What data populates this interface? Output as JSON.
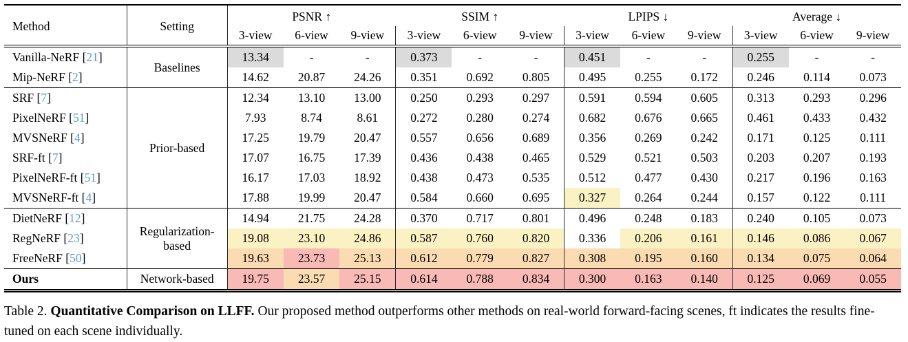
{
  "colors": {
    "best": "#F9B9B4",
    "second": "#FBDCB2",
    "third": "#FBF2C4",
    "baseline": "#DBDBDB",
    "citation": "#5B9BD5"
  },
  "table": {
    "method_header": "Method",
    "setting_header": "Setting",
    "groups": [
      {
        "label": "PSNR ↑"
      },
      {
        "label": "SSIM ↑"
      },
      {
        "label": "LPIPS ↓"
      },
      {
        "label": "Average ↓"
      }
    ],
    "subviews": [
      "3-view",
      "6-view",
      "9-view"
    ],
    "bracket_open": "[",
    "bracket_close": "]",
    "sections": [
      {
        "setting": "Baselines",
        "rows": [
          {
            "method": "Vanilla-NeRF",
            "cite": "21",
            "values": [
              "13.34",
              "-",
              "-",
              "0.373",
              "-",
              "-",
              "0.451",
              "-",
              "-",
              "0.255",
              "-",
              "-"
            ],
            "hl": [
              "g",
              "",
              "",
              "g",
              "",
              "",
              "g",
              "",
              "",
              "g",
              "",
              ""
            ]
          },
          {
            "method": "Mip-NeRF",
            "cite": "2",
            "values": [
              "14.62",
              "20.87",
              "24.26",
              "0.351",
              "0.692",
              "0.805",
              "0.495",
              "0.255",
              "0.172",
              "0.246",
              "0.114",
              "0.073"
            ],
            "hl": [
              "",
              "",
              "",
              "",
              "",
              "",
              "",
              "",
              "",
              "",
              "",
              ""
            ]
          }
        ]
      },
      {
        "setting": "Prior-based",
        "rows": [
          {
            "method": "SRF",
            "cite": "7",
            "values": [
              "12.34",
              "13.10",
              "13.00",
              "0.250",
              "0.293",
              "0.297",
              "0.591",
              "0.594",
              "0.605",
              "0.313",
              "0.293",
              "0.296"
            ],
            "hl": [
              "",
              "",
              "",
              "",
              "",
              "",
              "",
              "",
              "",
              "",
              "",
              ""
            ]
          },
          {
            "method": "PixelNeRF",
            "cite": "51",
            "values": [
              "7.93",
              "8.74",
              "8.61",
              "0.272",
              "0.280",
              "0.274",
              "0.682",
              "0.676",
              "0.665",
              "0.461",
              "0.433",
              "0.432"
            ],
            "hl": [
              "",
              "",
              "",
              "",
              "",
              "",
              "",
              "",
              "",
              "",
              "",
              ""
            ]
          },
          {
            "method": "MVSNeRF",
            "cite": "4",
            "values": [
              "17.25",
              "19.79",
              "20.47",
              "0.557",
              "0.656",
              "0.689",
              "0.356",
              "0.269",
              "0.242",
              "0.171",
              "0.125",
              "0.111"
            ],
            "hl": [
              "",
              "",
              "",
              "",
              "",
              "",
              "",
              "",
              "",
              "",
              "",
              ""
            ]
          },
          {
            "method": "SRF-ft",
            "cite": "7",
            "values": [
              "17.07",
              "16.75",
              "17.39",
              "0.436",
              "0.438",
              "0.465",
              "0.529",
              "0.521",
              "0.503",
              "0.203",
              "0.207",
              "0.193"
            ],
            "hl": [
              "",
              "",
              "",
              "",
              "",
              "",
              "",
              "",
              "",
              "",
              "",
              ""
            ]
          },
          {
            "method": "PixelNeRF-ft",
            "cite": "51",
            "values": [
              "16.17",
              "17.03",
              "18.92",
              "0.438",
              "0.473",
              "0.535",
              "0.512",
              "0.477",
              "0.430",
              "0.217",
              "0.196",
              "0.163"
            ],
            "hl": [
              "",
              "",
              "",
              "",
              "",
              "",
              "",
              "",
              "",
              "",
              "",
              ""
            ]
          },
          {
            "method": "MVSNeRF-ft",
            "cite": "4",
            "values": [
              "17.88",
              "19.99",
              "20.47",
              "0.584",
              "0.660",
              "0.695",
              "0.327",
              "0.264",
              "0.244",
              "0.157",
              "0.122",
              "0.111"
            ],
            "hl": [
              "",
              "",
              "",
              "",
              "",
              "",
              "y",
              "",
              "",
              "",
              "",
              ""
            ]
          }
        ]
      },
      {
        "setting": "Regularization-based",
        "rows": [
          {
            "method": "DietNeRF",
            "cite": "12",
            "values": [
              "14.94",
              "21.75",
              "24.28",
              "0.370",
              "0.717",
              "0.801",
              "0.496",
              "0.248",
              "0.183",
              "0.240",
              "0.105",
              "0.073"
            ],
            "hl": [
              "",
              "",
              "",
              "",
              "",
              "",
              "",
              "",
              "",
              "",
              "",
              ""
            ]
          },
          {
            "method": "RegNeRF",
            "cite": "23",
            "values": [
              "19.08",
              "23.10",
              "24.86",
              "0.587",
              "0.760",
              "0.820",
              "0.336",
              "0.206",
              "0.161",
              "0.146",
              "0.086",
              "0.067"
            ],
            "hl": [
              "y",
              "y",
              "y",
              "y",
              "y",
              "y",
              "",
              "y",
              "y",
              "y",
              "y",
              "y"
            ]
          },
          {
            "method": "FreeNeRF",
            "cite": "50",
            "values": [
              "19.63",
              "23.73",
              "25.13",
              "0.612",
              "0.779",
              "0.827",
              "0.308",
              "0.195",
              "0.160",
              "0.134",
              "0.075",
              "0.064"
            ],
            "hl": [
              "o",
              "r",
              "o",
              "o",
              "o",
              "o",
              "o",
              "o",
              "o",
              "o",
              "o",
              "o"
            ]
          }
        ]
      },
      {
        "setting": "Network-based",
        "rows": [
          {
            "method": "Ours",
            "cite": "",
            "bold": true,
            "values": [
              "19.75",
              "23.57",
              "25.15",
              "0.614",
              "0.788",
              "0.834",
              "0.300",
              "0.163",
              "0.140",
              "0.125",
              "0.069",
              "0.055"
            ],
            "hl": [
              "r",
              "o",
              "r",
              "r",
              "r",
              "r",
              "r",
              "r",
              "r",
              "r",
              "r",
              "r"
            ]
          }
        ]
      }
    ]
  },
  "caption": {
    "label": "Table 2.",
    "title_bold": "Quantitative Comparison on LLFF.",
    "text": "Our proposed method outperforms other methods on real-world forward-facing scenes, ft indicates the results fine-tuned on each scene individually."
  }
}
